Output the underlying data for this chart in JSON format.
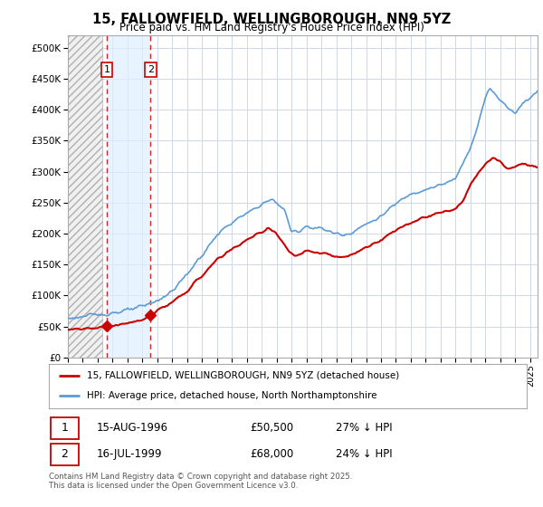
{
  "title": "15, FALLOWFIELD, WELLINGBOROUGH, NN9 5YZ",
  "subtitle": "Price paid vs. HM Land Registry's House Price Index (HPI)",
  "xlim_start": 1994.0,
  "xlim_end": 2025.5,
  "ylim": [
    0,
    520000
  ],
  "ytick_vals": [
    0,
    50000,
    100000,
    150000,
    200000,
    250000,
    300000,
    350000,
    400000,
    450000,
    500000
  ],
  "ytick_labels": [
    "£0",
    "£50K",
    "£100K",
    "£150K",
    "£200K",
    "£250K",
    "£300K",
    "£350K",
    "£400K",
    "£450K",
    "£500K"
  ],
  "hatch_start": 1994.0,
  "hatch_end": 1996.3,
  "blue_span_start": 1996.62,
  "blue_span_end": 1999.54,
  "sale1_x": 1996.62,
  "sale1_y": 50500,
  "sale1_label": "1",
  "sale2_x": 1999.54,
  "sale2_y": 68000,
  "sale2_label": "2",
  "red_color": "#cc0000",
  "blue_color": "#5b9bd5",
  "legend_line1": "15, FALLOWFIELD, WELLINGBOROUGH, NN9 5YZ (detached house)",
  "legend_line2": "HPI: Average price, detached house, North Northamptonshire",
  "table_row1_num": "1",
  "table_row1_date": "15-AUG-1996",
  "table_row1_price": "£50,500",
  "table_row1_hpi": "27% ↓ HPI",
  "table_row2_num": "2",
  "table_row2_date": "16-JUL-1999",
  "table_row2_price": "£68,000",
  "table_row2_hpi": "24% ↓ HPI",
  "footer": "Contains HM Land Registry data © Crown copyright and database right 2025.\nThis data is licensed under the Open Government Licence v3.0.",
  "bg_color": "#ffffff",
  "grid_color": "#d0d8e8"
}
